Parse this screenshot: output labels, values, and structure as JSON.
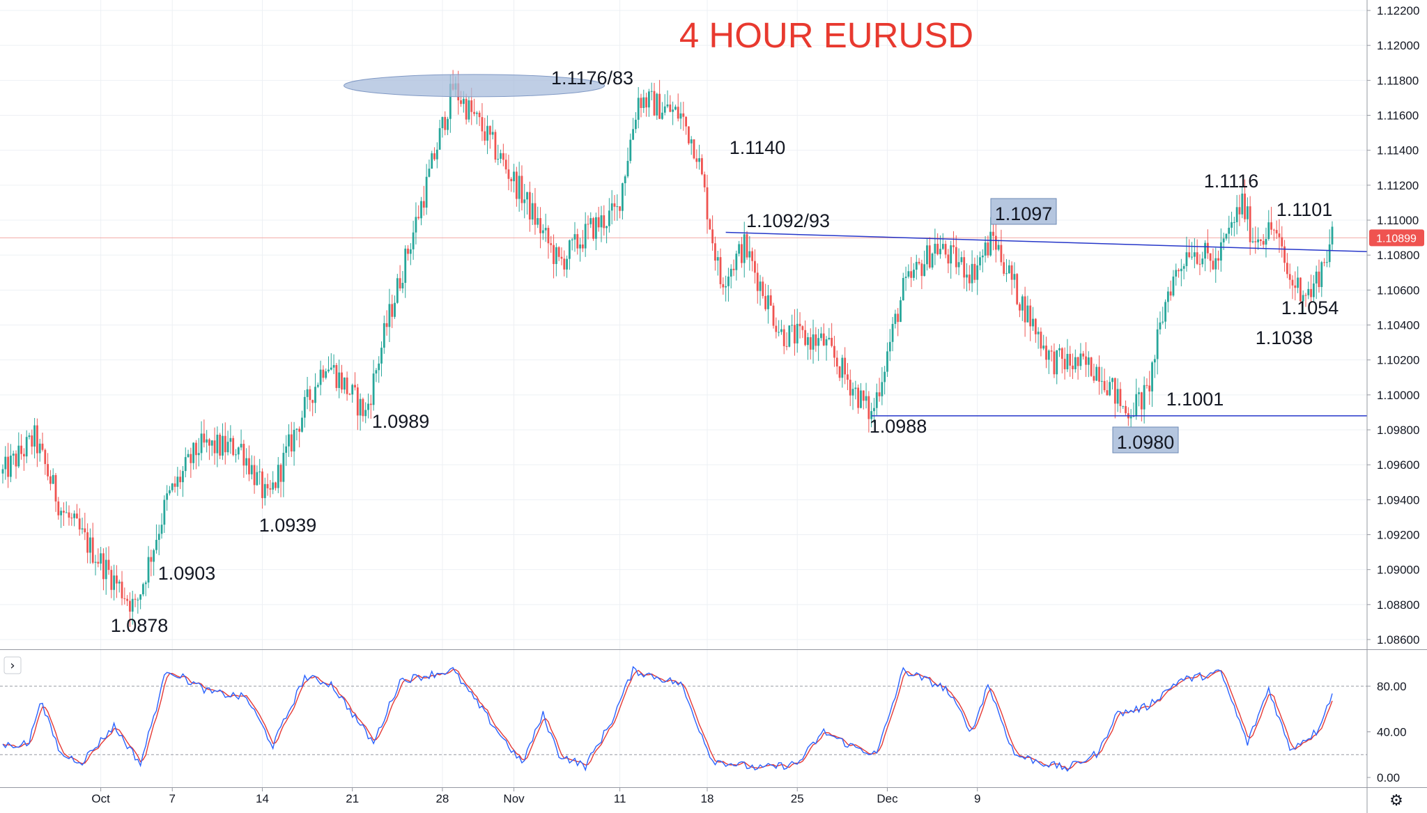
{
  "title": "4 HOUR EURUSD",
  "colors": {
    "up": "#26a69a",
    "down": "#ef5350",
    "trendline": "#2536c9",
    "title": "#e8392f",
    "price_tag": "#ef5350",
    "stoch_k": "#2962ff",
    "stoch_d": "#e53935",
    "box_fill": "#b5c6df",
    "ellipse_fill": "#a9bedc"
  },
  "chart_data": [
    {
      "type": "candlestick",
      "title": "4 HOUR EURUSD",
      "timeframe": "4H",
      "ylim": [
        1.0855,
        1.1225
      ],
      "price_axis_ticks": [
        "1.12200",
        "1.12000",
        "1.11800",
        "1.11600",
        "1.11400",
        "1.11200",
        "1.11000",
        "1.10800",
        "1.10600",
        "1.10400",
        "1.10200",
        "1.10000",
        "1.09800",
        "1.09600",
        "1.09400",
        "1.09200",
        "1.09000",
        "1.08800",
        "1.08600"
      ],
      "date_axis_ticks": [
        "Oct",
        "7",
        "14",
        "21",
        "28",
        "Nov",
        "11",
        "18",
        "25",
        "Dec",
        "9"
      ],
      "last_price": "1.10899",
      "pivot_series": [
        {
          "t": 0,
          "v": 1.0955
        },
        {
          "t": 12,
          "v": 1.0975
        },
        {
          "t": 22,
          "v": 1.0935
        },
        {
          "t": 50,
          "v": 1.0878
        },
        {
          "t": 62,
          "v": 1.094
        },
        {
          "t": 74,
          "v": 1.097
        },
        {
          "t": 90,
          "v": 1.097
        },
        {
          "t": 100,
          "v": 1.0939
        },
        {
          "t": 112,
          "v": 1.0985
        },
        {
          "t": 122,
          "v": 1.102
        },
        {
          "t": 137,
          "v": 1.0989
        },
        {
          "t": 145,
          "v": 1.104
        },
        {
          "t": 160,
          "v": 1.112
        },
        {
          "t": 170,
          "v": 1.1176
        },
        {
          "t": 182,
          "v": 1.115
        },
        {
          "t": 196,
          "v": 1.1115
        },
        {
          "t": 210,
          "v": 1.1075
        },
        {
          "t": 222,
          "v": 1.1095
        },
        {
          "t": 232,
          "v": 1.1105
        },
        {
          "t": 240,
          "v": 1.117
        },
        {
          "t": 256,
          "v": 1.116
        },
        {
          "t": 262,
          "v": 1.114
        },
        {
          "t": 271,
          "v": 1.1065
        },
        {
          "t": 280,
          "v": 1.1085
        },
        {
          "t": 294,
          "v": 1.1035
        },
        {
          "t": 310,
          "v": 1.103
        },
        {
          "t": 328,
          "v": 1.0988
        },
        {
          "t": 340,
          "v": 1.106
        },
        {
          "t": 352,
          "v": 1.1085
        },
        {
          "t": 366,
          "v": 1.107
        },
        {
          "t": 374,
          "v": 1.109
        },
        {
          "t": 384,
          "v": 1.1055
        },
        {
          "t": 396,
          "v": 1.102
        },
        {
          "t": 414,
          "v": 1.1015
        },
        {
          "t": 424,
          "v": 1.099
        },
        {
          "t": 432,
          "v": 1.1
        },
        {
          "t": 440,
          "v": 1.106
        },
        {
          "t": 448,
          "v": 1.1085
        },
        {
          "t": 458,
          "v": 1.1075
        },
        {
          "t": 468,
          "v": 1.111
        },
        {
          "t": 472,
          "v": 1.109
        },
        {
          "t": 480,
          "v": 1.1095
        },
        {
          "t": 486,
          "v": 1.1065
        },
        {
          "t": 494,
          "v": 1.1058
        },
        {
          "t": 502,
          "v": 1.1089
        }
      ],
      "annotations": [
        {
          "text": "1.1176/83",
          "t": 178,
          "price": 1.1183,
          "style": "ellipse"
        },
        {
          "text": "1.1140",
          "t": 264,
          "price": 1.114,
          "style": "plain"
        },
        {
          "text": "1.1092/93",
          "t": 273,
          "price": 1.1093,
          "style": "plain"
        },
        {
          "text": "1.1097",
          "t": 372,
          "price": 1.1097,
          "style": "box"
        },
        {
          "text": "1.1116",
          "t": 459,
          "price": 1.1116,
          "style": "plain"
        },
        {
          "text": "1.1101",
          "t": 488,
          "price": 1.1101,
          "style": "plain"
        },
        {
          "text": "1.1054",
          "t": 492,
          "price": 1.1054,
          "style": "plain"
        },
        {
          "text": "1.1038",
          "t": 475,
          "price": 1.1038,
          "style": "plain"
        },
        {
          "text": "1.1001",
          "t": 446,
          "price": 1.1001,
          "style": "plain"
        },
        {
          "text": "1.0980",
          "t": 428,
          "price": 1.098,
          "style": "box"
        },
        {
          "text": "1.0988",
          "t": 335,
          "price": 1.0988,
          "style": "plain"
        },
        {
          "text": "1.0989",
          "t": 150,
          "price": 1.0989,
          "style": "plain"
        },
        {
          "text": "1.0939",
          "t": 107,
          "price": 1.0939,
          "style": "plain"
        },
        {
          "text": "1.0903",
          "t": 69,
          "price": 1.0903,
          "style": "plain"
        },
        {
          "text": "1.0878",
          "t": 51,
          "price": 1.0878,
          "style": "plain"
        }
      ],
      "trendlines": [
        {
          "name": "resistance",
          "from": {
            "t": 273,
            "price": 1.1093
          },
          "to": {
            "t": 510,
            "price": 1.1082
          }
        },
        {
          "name": "support",
          "from": {
            "t": 328,
            "price": 1.0988
          },
          "to": {
            "t": 510,
            "price": 1.0988
          }
        }
      ]
    },
    {
      "type": "line",
      "indicator": "stochastic",
      "ylim": [
        0,
        100
      ],
      "ticks": [
        "80.00",
        "40.00",
        "0.00"
      ],
      "levels": [
        80,
        20
      ],
      "pivot_series": [
        {
          "t": 0,
          "v": 28
        },
        {
          "t": 10,
          "v": 30
        },
        {
          "t": 14,
          "v": 68
        },
        {
          "t": 22,
          "v": 20
        },
        {
          "t": 30,
          "v": 14
        },
        {
          "t": 42,
          "v": 45
        },
        {
          "t": 52,
          "v": 12
        },
        {
          "t": 62,
          "v": 95
        },
        {
          "t": 78,
          "v": 75
        },
        {
          "t": 92,
          "v": 70
        },
        {
          "t": 102,
          "v": 28
        },
        {
          "t": 114,
          "v": 88
        },
        {
          "t": 124,
          "v": 82
        },
        {
          "t": 140,
          "v": 30
        },
        {
          "t": 150,
          "v": 85
        },
        {
          "t": 170,
          "v": 94
        },
        {
          "t": 196,
          "v": 12
        },
        {
          "t": 204,
          "v": 55
        },
        {
          "t": 210,
          "v": 20
        },
        {
          "t": 220,
          "v": 10
        },
        {
          "t": 230,
          "v": 50
        },
        {
          "t": 238,
          "v": 94
        },
        {
          "t": 256,
          "v": 82
        },
        {
          "t": 268,
          "v": 15
        },
        {
          "t": 286,
          "v": 8
        },
        {
          "t": 300,
          "v": 12
        },
        {
          "t": 310,
          "v": 40
        },
        {
          "t": 320,
          "v": 28
        },
        {
          "t": 330,
          "v": 20
        },
        {
          "t": 340,
          "v": 94
        },
        {
          "t": 356,
          "v": 78
        },
        {
          "t": 366,
          "v": 40
        },
        {
          "t": 372,
          "v": 82
        },
        {
          "t": 382,
          "v": 20
        },
        {
          "t": 394,
          "v": 12
        },
        {
          "t": 402,
          "v": 8
        },
        {
          "t": 414,
          "v": 22
        },
        {
          "t": 420,
          "v": 55
        },
        {
          "t": 432,
          "v": 62
        },
        {
          "t": 444,
          "v": 85
        },
        {
          "t": 460,
          "v": 92
        },
        {
          "t": 470,
          "v": 30
        },
        {
          "t": 478,
          "v": 78
        },
        {
          "t": 486,
          "v": 25
        },
        {
          "t": 496,
          "v": 40
        },
        {
          "t": 505,
          "v": 90
        }
      ]
    }
  ],
  "ui": {
    "expand_glyph": "›",
    "settings_glyph": "⚙"
  }
}
